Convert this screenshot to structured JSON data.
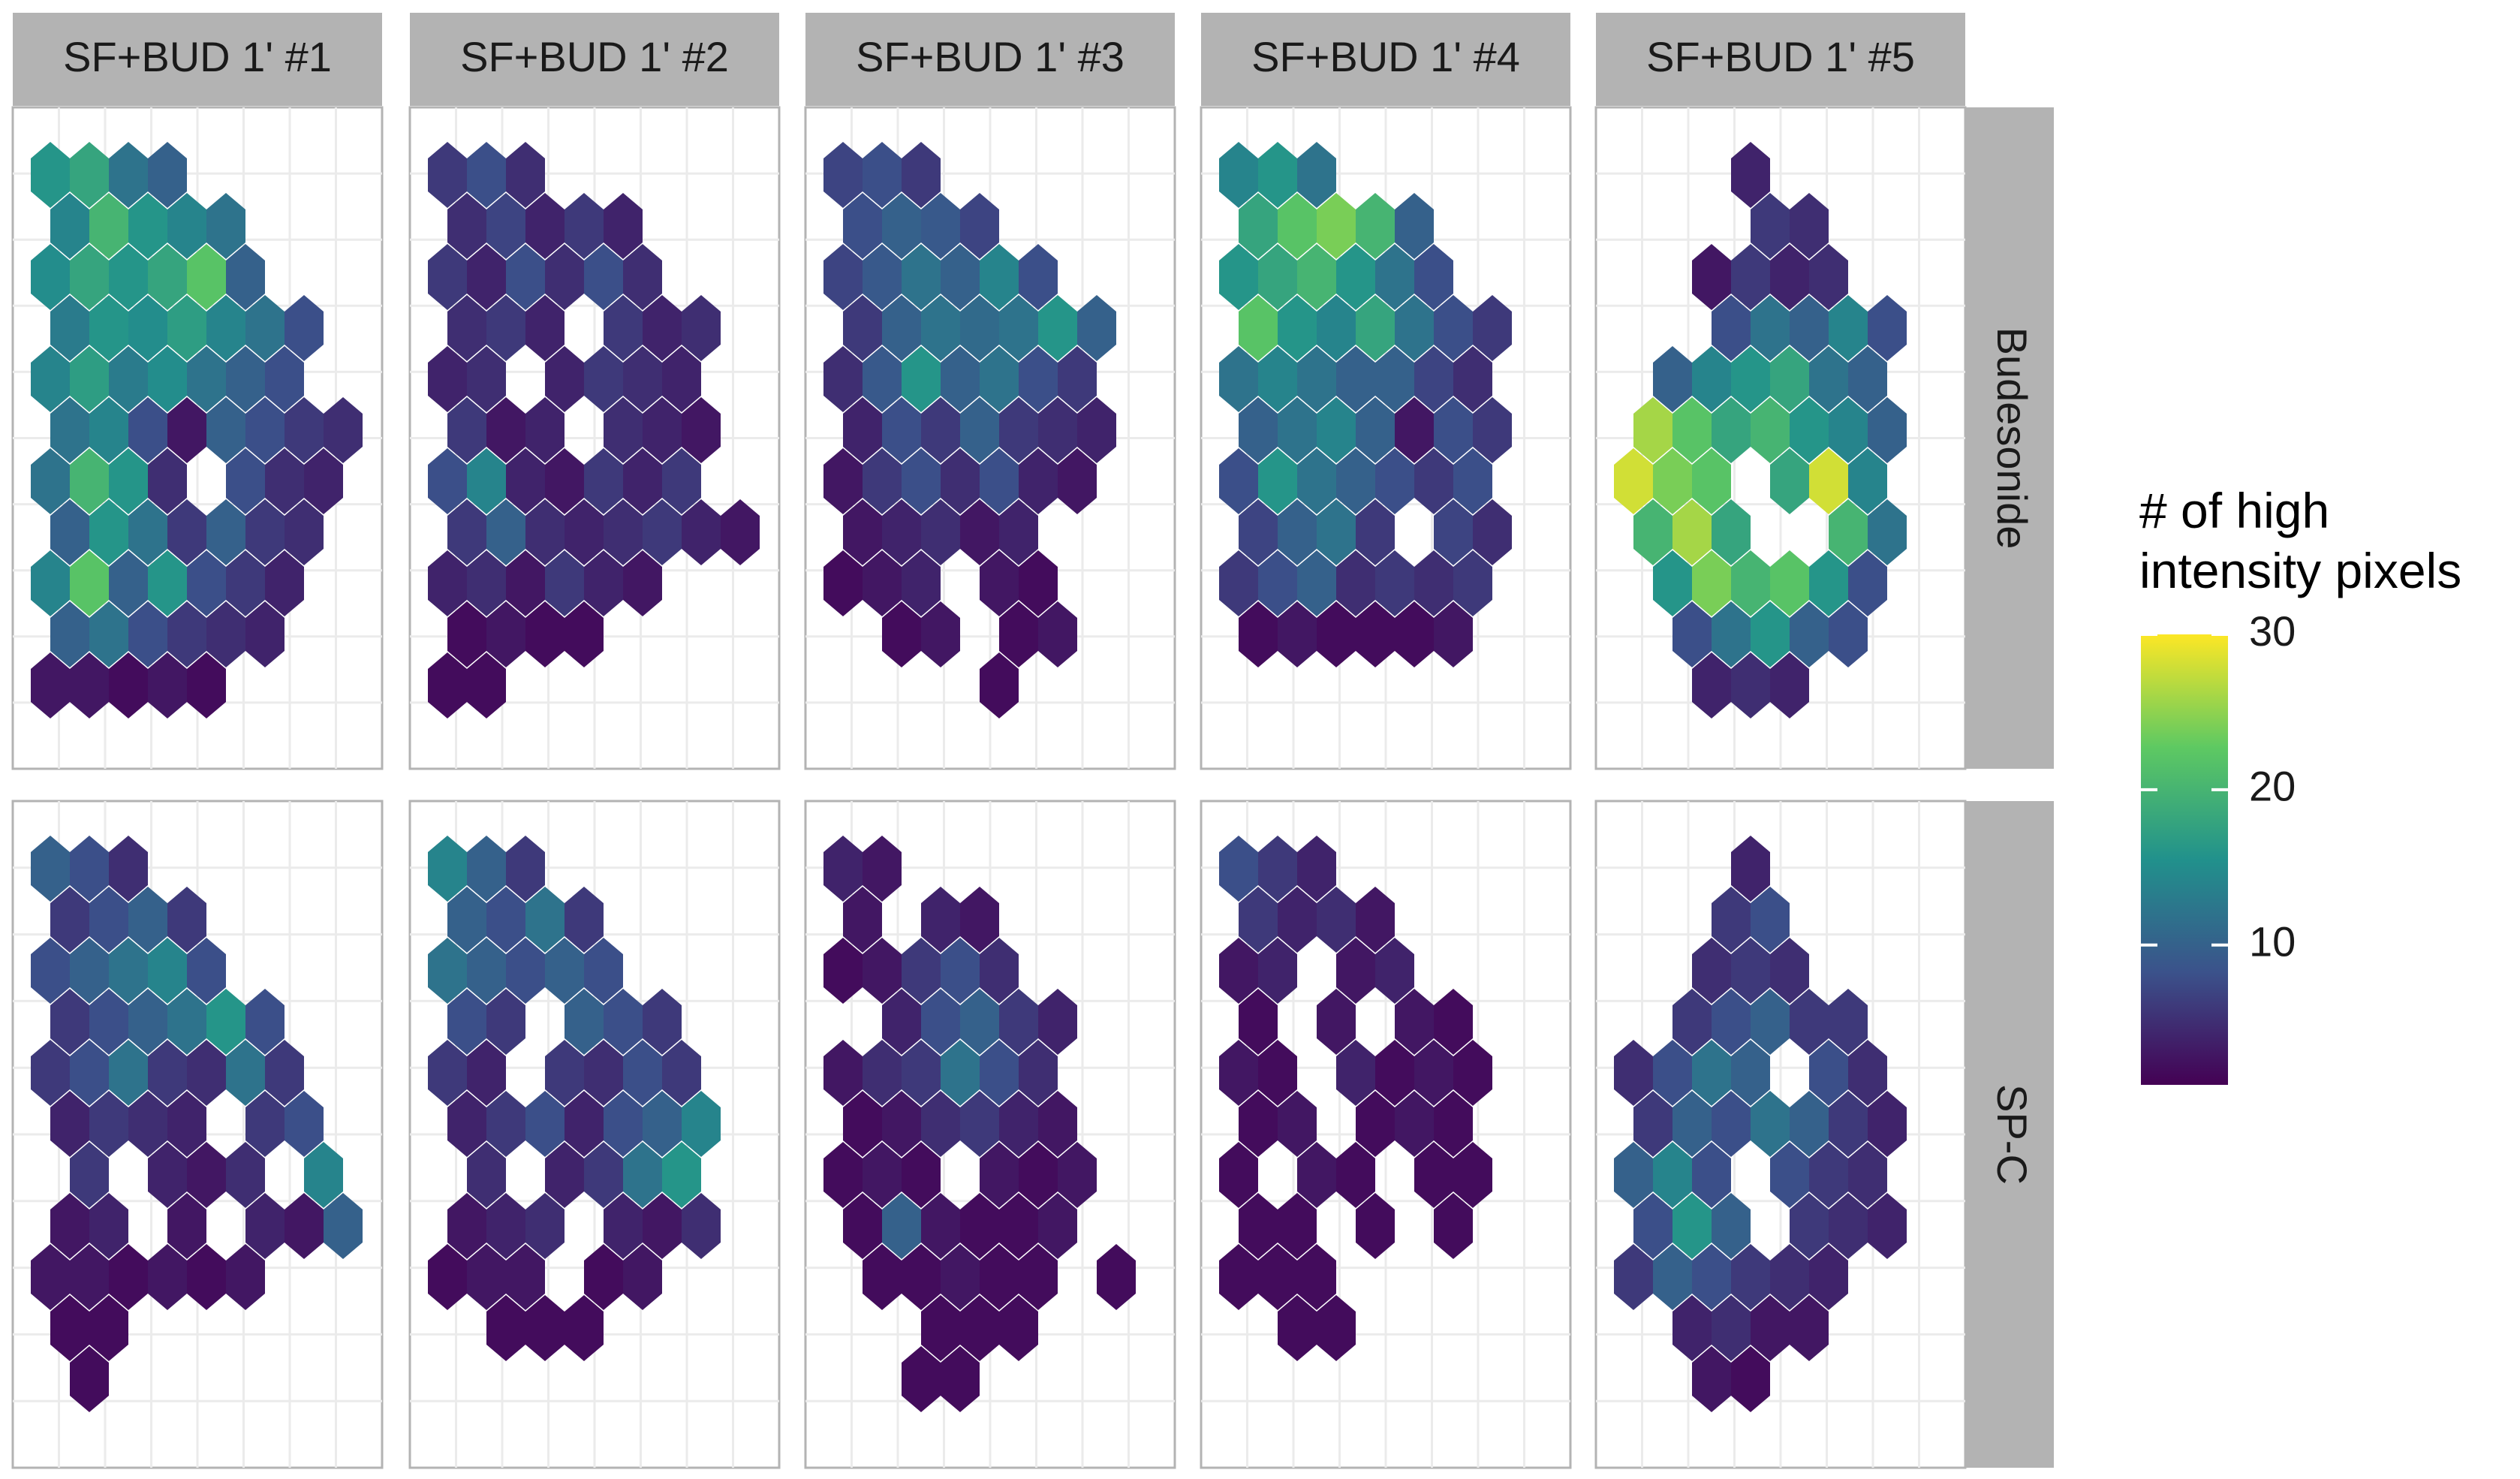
{
  "chart_data": {
    "type": "hexbin",
    "facets": [
      "SF+BUD 1' #1",
      "SF+BUD 1' #2",
      "SF+BUD 1' #3",
      "SF+BUD 1' #4",
      "SF+BUD 1' #5"
    ],
    "rows": [
      "Budesonide",
      "SP-C"
    ],
    "legend_title": "# of high\nintensity pixels",
    "colormap": "viridis",
    "clim": [
      1,
      30
    ],
    "cticks": [
      10,
      20,
      30
    ],
    "panels": [
      [
        [
          [
            16,
            18,
            12,
            10,
            null,
            null,
            null,
            null
          ],
          [
            14,
            20,
            16,
            14,
            12,
            null,
            null,
            null
          ],
          [
            15,
            18,
            16,
            18,
            22,
            10,
            null,
            null
          ],
          [
            13,
            16,
            15,
            17,
            14,
            12,
            8,
            null
          ],
          [
            14,
            17,
            13,
            15,
            12,
            10,
            8,
            null
          ],
          [
            12,
            14,
            8,
            3,
            10,
            8,
            6,
            5
          ],
          [
            12,
            20,
            16,
            5,
            null,
            8,
            5,
            4
          ],
          [
            10,
            16,
            12,
            6,
            10,
            6,
            5,
            null
          ],
          [
            14,
            22,
            10,
            16,
            8,
            6,
            4,
            null
          ],
          [
            10,
            12,
            8,
            6,
            5,
            4,
            null,
            null
          ],
          [
            3,
            3,
            2,
            3,
            2,
            null,
            null,
            null
          ]
        ],
        [
          [
            6,
            8,
            5,
            null,
            null,
            null,
            null,
            null
          ],
          [
            5,
            7,
            4,
            6,
            4,
            null,
            null,
            null
          ],
          [
            6,
            4,
            8,
            5,
            8,
            5,
            null,
            null
          ],
          [
            5,
            6,
            4,
            null,
            6,
            4,
            5,
            null
          ],
          [
            4,
            5,
            null,
            4,
            6,
            5,
            4,
            null
          ],
          [
            6,
            3,
            4,
            null,
            5,
            4,
            3,
            null
          ],
          [
            8,
            14,
            4,
            3,
            6,
            4,
            6,
            null
          ],
          [
            6,
            10,
            5,
            4,
            5,
            6,
            4,
            3
          ],
          [
            4,
            5,
            3,
            6,
            4,
            3,
            null,
            null
          ],
          [
            2,
            3,
            2,
            2,
            null,
            null,
            null,
            null
          ],
          [
            2,
            2,
            null,
            null,
            null,
            null,
            null,
            null
          ]
        ],
        [
          [
            7,
            8,
            6,
            null,
            null,
            null,
            null,
            null
          ],
          [
            8,
            10,
            9,
            7,
            null,
            null,
            null,
            null
          ],
          [
            7,
            9,
            12,
            10,
            14,
            8,
            null,
            null
          ],
          [
            6,
            10,
            12,
            11,
            12,
            16,
            10,
            null
          ],
          [
            5,
            9,
            16,
            10,
            12,
            8,
            6,
            null
          ],
          [
            4,
            8,
            6,
            10,
            6,
            5,
            4,
            null
          ],
          [
            3,
            6,
            8,
            5,
            8,
            4,
            3,
            null
          ],
          [
            3,
            4,
            5,
            3,
            4,
            null,
            null,
            null
          ],
          [
            2,
            3,
            4,
            null,
            3,
            2,
            null,
            null
          ],
          [
            null,
            2,
            3,
            null,
            2,
            3,
            null,
            null
          ],
          [
            null,
            null,
            null,
            null,
            2,
            null,
            null,
            null
          ]
        ],
        [
          [
            14,
            16,
            12,
            null,
            null,
            null,
            null,
            null
          ],
          [
            18,
            22,
            24,
            20,
            10,
            null,
            null,
            null
          ],
          [
            16,
            18,
            20,
            16,
            12,
            8,
            null,
            null
          ],
          [
            22,
            16,
            14,
            18,
            12,
            8,
            6,
            null
          ],
          [
            12,
            14,
            12,
            10,
            10,
            7,
            5,
            null
          ],
          [
            10,
            12,
            14,
            10,
            3,
            8,
            6,
            null
          ],
          [
            8,
            16,
            12,
            10,
            8,
            6,
            8,
            null
          ],
          [
            7,
            10,
            12,
            6,
            null,
            7,
            5,
            null
          ],
          [
            6,
            8,
            10,
            5,
            6,
            5,
            6,
            null
          ],
          [
            2,
            3,
            2,
            2,
            2,
            3,
            null,
            null
          ],
          [
            null,
            null,
            null,
            null,
            null,
            null,
            null,
            null
          ]
        ],
        [
          [
            null,
            null,
            null,
            4,
            null,
            null,
            null,
            null
          ],
          [
            null,
            null,
            null,
            6,
            5,
            null,
            null,
            null
          ],
          [
            null,
            null,
            3,
            6,
            4,
            5,
            null,
            null
          ],
          [
            null,
            null,
            8,
            12,
            10,
            14,
            8,
            null
          ],
          [
            null,
            10,
            14,
            16,
            18,
            12,
            10,
            null
          ],
          [
            26,
            22,
            18,
            20,
            16,
            14,
            10,
            null
          ],
          [
            28,
            24,
            22,
            null,
            18,
            28,
            14,
            null
          ],
          [
            20,
            26,
            18,
            null,
            null,
            20,
            12,
            null
          ],
          [
            null,
            16,
            24,
            20,
            22,
            16,
            8,
            null
          ],
          [
            null,
            8,
            12,
            16,
            10,
            8,
            null,
            null
          ],
          [
            null,
            null,
            4,
            5,
            4,
            null,
            null,
            null
          ]
        ]
      ],
      [
        [
          [
            10,
            8,
            5,
            null,
            null,
            null,
            null,
            null
          ],
          [
            6,
            8,
            10,
            6,
            null,
            null,
            null,
            null
          ],
          [
            8,
            10,
            12,
            14,
            8,
            null,
            null,
            null
          ],
          [
            6,
            8,
            10,
            12,
            16,
            8,
            null,
            null
          ],
          [
            6,
            8,
            12,
            6,
            5,
            12,
            6,
            null
          ],
          [
            4,
            6,
            5,
            4,
            null,
            6,
            8,
            null
          ],
          [
            null,
            6,
            null,
            4,
            3,
            5,
            null,
            14
          ],
          [
            3,
            4,
            null,
            3,
            null,
            4,
            3,
            10
          ],
          [
            3,
            3,
            2,
            3,
            2,
            3,
            null,
            null
          ],
          [
            2,
            2,
            null,
            null,
            null,
            null,
            null,
            null
          ],
          [
            null,
            2,
            null,
            null,
            null,
            null,
            null,
            null
          ]
        ],
        [
          [
            14,
            10,
            6,
            null,
            null,
            null,
            null,
            null
          ],
          [
            10,
            8,
            12,
            6,
            null,
            null,
            null,
            null
          ],
          [
            12,
            10,
            8,
            10,
            8,
            null,
            null,
            null
          ],
          [
            8,
            6,
            null,
            10,
            8,
            6,
            null,
            null
          ],
          [
            6,
            4,
            null,
            6,
            5,
            8,
            6,
            null
          ],
          [
            4,
            6,
            8,
            4,
            8,
            10,
            14,
            null
          ],
          [
            null,
            5,
            null,
            4,
            6,
            12,
            16,
            null
          ],
          [
            3,
            4,
            5,
            null,
            4,
            3,
            5,
            null
          ],
          [
            2,
            3,
            3,
            null,
            2,
            3,
            null,
            null
          ],
          [
            null,
            2,
            2,
            2,
            null,
            null,
            null,
            null
          ],
          [
            null,
            null,
            null,
            null,
            null,
            null,
            null,
            null
          ]
        ],
        [
          [
            4,
            3,
            null,
            null,
            null,
            null,
            null,
            null
          ],
          [
            3,
            null,
            4,
            3,
            null,
            null,
            null,
            null
          ],
          [
            2,
            3,
            6,
            8,
            5,
            null,
            null,
            null
          ],
          [
            null,
            4,
            8,
            10,
            6,
            4,
            null,
            null
          ],
          [
            3,
            5,
            6,
            12,
            8,
            5,
            null,
            null
          ],
          [
            2,
            3,
            5,
            6,
            4,
            3,
            null,
            null
          ],
          [
            2,
            3,
            2,
            null,
            3,
            2,
            3,
            null
          ],
          [
            2,
            10,
            3,
            2,
            2,
            3,
            null,
            null
          ],
          [
            null,
            2,
            2,
            3,
            2,
            2,
            null,
            2
          ],
          [
            null,
            null,
            2,
            2,
            2,
            null,
            null,
            null
          ],
          [
            null,
            null,
            2,
            2,
            null,
            null,
            null,
            null
          ]
        ],
        [
          [
            8,
            6,
            4,
            null,
            null,
            null,
            null,
            null
          ],
          [
            6,
            4,
            5,
            3,
            null,
            null,
            null,
            null
          ],
          [
            3,
            4,
            null,
            3,
            4,
            null,
            null,
            null
          ],
          [
            2,
            null,
            3,
            null,
            3,
            2,
            null,
            null
          ],
          [
            3,
            2,
            null,
            4,
            2,
            3,
            2,
            null
          ],
          [
            2,
            3,
            null,
            2,
            3,
            2,
            null,
            null
          ],
          [
            2,
            null,
            3,
            2,
            null,
            2,
            2,
            null
          ],
          [
            2,
            2,
            null,
            2,
            null,
            2,
            null,
            null
          ],
          [
            2,
            2,
            2,
            null,
            null,
            null,
            null,
            null
          ],
          [
            null,
            2,
            2,
            null,
            null,
            null,
            null,
            null
          ],
          [
            null,
            null,
            null,
            null,
            null,
            null,
            null,
            null
          ]
        ],
        [
          [
            null,
            null,
            null,
            4,
            null,
            null,
            null,
            null
          ],
          [
            null,
            null,
            6,
            8,
            null,
            null,
            null,
            null
          ],
          [
            null,
            null,
            5,
            6,
            5,
            null,
            null,
            null
          ],
          [
            null,
            6,
            8,
            10,
            6,
            6,
            null,
            null
          ],
          [
            5,
            8,
            12,
            10,
            null,
            8,
            5,
            null
          ],
          [
            6,
            10,
            8,
            12,
            10,
            6,
            4,
            null
          ],
          [
            10,
            14,
            8,
            null,
            8,
            6,
            5,
            null
          ],
          [
            8,
            16,
            10,
            null,
            6,
            5,
            4,
            null
          ],
          [
            6,
            10,
            8,
            6,
            5,
            4,
            null,
            null
          ],
          [
            null,
            4,
            5,
            3,
            3,
            null,
            null,
            null
          ],
          [
            null,
            null,
            3,
            2,
            null,
            null,
            null,
            null
          ]
        ]
      ]
    ]
  }
}
